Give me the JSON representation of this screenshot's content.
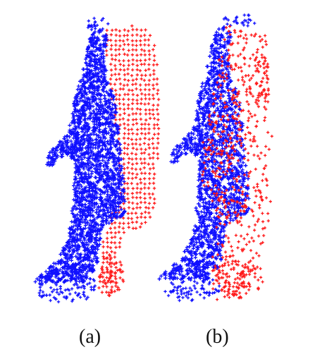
{
  "captions": {
    "a": "(a)",
    "b": "(b)"
  },
  "colors": {
    "source": "#1010ff",
    "target": "#ff1a1a"
  },
  "panels": [
    {
      "id": "a",
      "description_keys": [
        "source-point-cloud",
        "target-point-cloud"
      ],
      "alignment": "unaligned"
    },
    {
      "id": "b",
      "description_keys": [
        "source-point-cloud",
        "target-point-cloud"
      ],
      "alignment": "aligned"
    }
  ]
}
